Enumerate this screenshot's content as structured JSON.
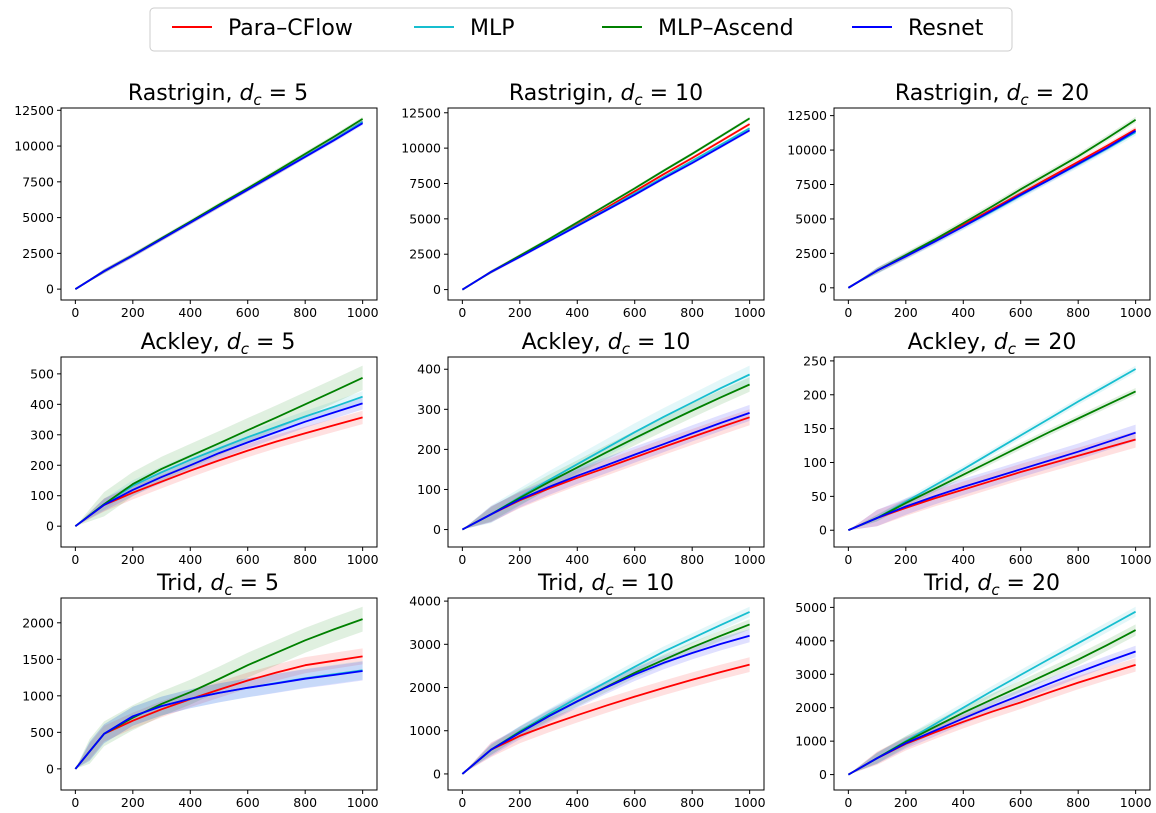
{
  "legend": {
    "placement": "top-center",
    "entries": [
      {
        "name": "Para–CFlow",
        "color": "#ff0000"
      },
      {
        "name": "MLP",
        "color": "#17becf"
      },
      {
        "name": "MLP–Ascend",
        "color": "#008000"
      },
      {
        "name": "Resnet",
        "color": "#0000ff"
      }
    ]
  },
  "chart_data": [
    {
      "type": "line",
      "function": "Rastrigin",
      "dc": "5",
      "xlim": [
        0,
        1000
      ],
      "ylim": [
        0,
        12500
      ],
      "xticks": [
        0,
        200,
        400,
        600,
        800,
        1000
      ],
      "yticks": [
        0,
        2500,
        5000,
        7500,
        10000,
        12500
      ],
      "x": [
        0,
        100,
        200,
        300,
        400,
        500,
        600,
        700,
        800,
        900,
        1000
      ],
      "series": [
        {
          "name": "Para–CFlow",
          "color": "#ff0000",
          "values": [
            0,
            1250,
            2350,
            3500,
            4650,
            5800,
            6950,
            8100,
            9300,
            10450,
            11700
          ],
          "band": 150
        },
        {
          "name": "MLP",
          "color": "#17becf",
          "values": [
            0,
            1250,
            2350,
            3500,
            4650,
            5800,
            6950,
            8100,
            9300,
            10450,
            11700
          ],
          "band": 150
        },
        {
          "name": "MLP–Ascend",
          "color": "#008000",
          "values": [
            0,
            1250,
            2380,
            3550,
            4720,
            5900,
            7050,
            8250,
            9450,
            10650,
            11900
          ],
          "band": 150
        },
        {
          "name": "Resnet",
          "color": "#0000ff",
          "values": [
            0,
            1250,
            2350,
            3500,
            4650,
            5800,
            6950,
            8100,
            9250,
            10400,
            11600
          ],
          "band": 150
        }
      ]
    },
    {
      "type": "line",
      "function": "Rastrigin",
      "dc": "10",
      "xlim": [
        0,
        1000
      ],
      "ylim": [
        0,
        12500
      ],
      "xticks": [
        0,
        200,
        400,
        600,
        800,
        1000
      ],
      "yticks": [
        0,
        2500,
        5000,
        7500,
        10000,
        12500
      ],
      "x": [
        0,
        100,
        200,
        300,
        400,
        500,
        600,
        700,
        800,
        900,
        1000
      ],
      "series": [
        {
          "name": "Para–CFlow",
          "color": "#ff0000",
          "values": [
            0,
            1250,
            2350,
            3450,
            4600,
            5750,
            6950,
            8150,
            9300,
            10500,
            11700
          ],
          "band": 120
        },
        {
          "name": "MLP",
          "color": "#17becf",
          "values": [
            0,
            1250,
            2350,
            3450,
            4550,
            5650,
            6800,
            7950,
            9100,
            10250,
            11400
          ],
          "band": 120
        },
        {
          "name": "MLP–Ascend",
          "color": "#008000",
          "values": [
            0,
            1250,
            2400,
            3550,
            4750,
            5950,
            7150,
            8400,
            9600,
            10850,
            12100
          ],
          "band": 120
        },
        {
          "name": "Resnet",
          "color": "#0000ff",
          "values": [
            0,
            1250,
            2300,
            3400,
            4500,
            5600,
            6700,
            7850,
            8950,
            10100,
            11250
          ],
          "band": 120
        }
      ]
    },
    {
      "type": "line",
      "function": "Rastrigin",
      "dc": "20",
      "xlim": [
        0,
        1000
      ],
      "ylim": [
        0,
        12500
      ],
      "xticks": [
        0,
        200,
        400,
        600,
        800,
        1000
      ],
      "yticks": [
        0,
        2500,
        5000,
        7500,
        10000,
        12500
      ],
      "x": [
        0,
        100,
        200,
        300,
        400,
        500,
        600,
        700,
        800,
        900,
        1000
      ],
      "series": [
        {
          "name": "Para–CFlow",
          "color": "#ff0000",
          "values": [
            0,
            1250,
            2300,
            3400,
            4550,
            5700,
            6850,
            8000,
            9150,
            10300,
            11500
          ],
          "band": 200
        },
        {
          "name": "MLP",
          "color": "#17becf",
          "values": [
            0,
            1250,
            2300,
            3350,
            4450,
            5550,
            6700,
            7850,
            8950,
            10100,
            11300
          ],
          "band": 250
        },
        {
          "name": "MLP–Ascend",
          "color": "#008000",
          "values": [
            0,
            1250,
            2380,
            3500,
            4700,
            5900,
            7150,
            8350,
            9550,
            10850,
            12200
          ],
          "band": 220
        },
        {
          "name": "Resnet",
          "color": "#0000ff",
          "values": [
            0,
            1250,
            2280,
            3350,
            4450,
            5600,
            6750,
            7850,
            9000,
            10150,
            11400
          ],
          "band": 200
        }
      ]
    },
    {
      "type": "line",
      "function": "Ackley",
      "dc": "5",
      "xlim": [
        0,
        1000
      ],
      "ylim": [
        0,
        500
      ],
      "xticks": [
        0,
        200,
        400,
        600,
        800,
        1000
      ],
      "yticks": [
        0,
        100,
        200,
        300,
        400,
        500
      ],
      "x": [
        0,
        100,
        200,
        300,
        400,
        500,
        600,
        700,
        800,
        900,
        1000
      ],
      "series": [
        {
          "name": "Para–CFlow",
          "color": "#ff0000",
          "values": [
            0,
            70,
            110,
            146,
            182,
            216,
            248,
            278,
            305,
            331,
            357
          ],
          "band": 22
        },
        {
          "name": "MLP",
          "color": "#17becf",
          "values": [
            0,
            72,
            133,
            177,
            218,
            255,
            292,
            326,
            360,
            392,
            425
          ],
          "band": 18
        },
        {
          "name": "MLP–Ascend",
          "color": "#008000",
          "values": [
            0,
            72,
            138,
            188,
            230,
            272,
            315,
            357,
            400,
            443,
            487
          ],
          "band": 40
        },
        {
          "name": "Resnet",
          "color": "#0000ff",
          "values": [
            0,
            70,
            119,
            161,
            200,
            240,
            275,
            309,
            343,
            373,
            403
          ],
          "band": 20
        }
      ]
    },
    {
      "type": "line",
      "function": "Ackley",
      "dc": "10",
      "xlim": [
        0,
        1000
      ],
      "ylim": [
        0,
        400
      ],
      "xticks": [
        0,
        200,
        400,
        600,
        800,
        1000
      ],
      "yticks": [
        0,
        100,
        200,
        300,
        400
      ],
      "x": [
        0,
        100,
        200,
        300,
        400,
        500,
        600,
        700,
        800,
        900,
        1000
      ],
      "series": [
        {
          "name": "Para–CFlow",
          "color": "#ff0000",
          "values": [
            0,
            38,
            73,
            102,
            129,
            154,
            180,
            206,
            231,
            256,
            280
          ],
          "band": 20
        },
        {
          "name": "MLP",
          "color": "#17becf",
          "values": [
            0,
            38,
            81,
            123,
            163,
            203,
            243,
            281,
            317,
            353,
            387
          ],
          "band": 22
        },
        {
          "name": "MLP–Ascend",
          "color": "#008000",
          "values": [
            0,
            38,
            79,
            118,
            155,
            192,
            228,
            263,
            297,
            330,
            362
          ],
          "band": 18
        },
        {
          "name": "Resnet",
          "color": "#0000ff",
          "values": [
            0,
            38,
            75,
            106,
            134,
            160,
            187,
            213,
            240,
            266,
            291
          ],
          "band": 20
        }
      ]
    },
    {
      "type": "line",
      "function": "Ackley",
      "dc": "20",
      "xlim": [
        0,
        1000
      ],
      "ylim": [
        0,
        250
      ],
      "xticks": [
        0,
        200,
        400,
        600,
        800,
        1000
      ],
      "yticks": [
        0,
        50,
        100,
        150,
        200,
        250
      ],
      "x": [
        0,
        100,
        200,
        300,
        400,
        500,
        600,
        700,
        800,
        900,
        1000
      ],
      "series": [
        {
          "name": "Para–CFlow",
          "color": "#ff0000",
          "values": [
            0,
            18,
            33,
            47,
            60,
            73,
            86,
            98,
            110,
            122,
            134
          ],
          "band": 12
        },
        {
          "name": "MLP",
          "color": "#17becf",
          "values": [
            0,
            18,
            42,
            66,
            90,
            115,
            140,
            165,
            190,
            214,
            238
          ],
          "band": 5
        },
        {
          "name": "MLP–Ascend",
          "color": "#008000",
          "values": [
            0,
            18,
            40,
            61,
            82,
            103,
            124,
            145,
            165,
            185,
            205
          ],
          "band": 5
        },
        {
          "name": "Resnet",
          "color": "#0000ff",
          "values": [
            0,
            18,
            35,
            50,
            64,
            77,
            90,
            103,
            116,
            130,
            144
          ],
          "band": 12
        }
      ]
    },
    {
      "type": "line",
      "function": "Trid",
      "dc": "5",
      "xlim": [
        0,
        1000
      ],
      "ylim": [
        0,
        2000
      ],
      "xticks": [
        0,
        200,
        400,
        600,
        800,
        1000
      ],
      "yticks": [
        0,
        500,
        1000,
        1500,
        2000
      ],
      "x": [
        0,
        50,
        100,
        200,
        300,
        400,
        500,
        600,
        700,
        800,
        900,
        1000
      ],
      "series": [
        {
          "name": "Para–CFlow",
          "color": "#ff0000",
          "values": [
            0,
            240,
            480,
            660,
            815,
            955,
            1085,
            1210,
            1320,
            1420,
            1480,
            1540
          ],
          "band": 110
        },
        {
          "name": "MLP",
          "color": "#17becf",
          "values": [
            0,
            240,
            480,
            720,
            860,
            960,
            1040,
            1110,
            1175,
            1240,
            1295,
            1350
          ],
          "band": 130
        },
        {
          "name": "MLP–Ascend",
          "color": "#008000",
          "values": [
            0,
            240,
            480,
            700,
            890,
            1050,
            1230,
            1420,
            1590,
            1760,
            1910,
            2050
          ],
          "band": 170
        },
        {
          "name": "Resnet",
          "color": "#0000ff",
          "values": [
            0,
            240,
            480,
            720,
            860,
            960,
            1040,
            1110,
            1170,
            1235,
            1285,
            1340
          ],
          "band": 130
        }
      ]
    },
    {
      "type": "line",
      "function": "Trid",
      "dc": "10",
      "xlim": [
        0,
        1000
      ],
      "ylim": [
        0,
        4000
      ],
      "xticks": [
        0,
        200,
        400,
        600,
        800,
        1000
      ],
      "yticks": [
        0,
        1000,
        2000,
        3000,
        4000
      ],
      "x": [
        0,
        100,
        200,
        300,
        400,
        500,
        600,
        700,
        800,
        900,
        1000
      ],
      "series": [
        {
          "name": "Para–CFlow",
          "color": "#ff0000",
          "values": [
            0,
            560,
            880,
            1130,
            1360,
            1580,
            1790,
            1990,
            2180,
            2360,
            2530
          ],
          "band": 170
        },
        {
          "name": "MLP",
          "color": "#17becf",
          "values": [
            0,
            560,
            990,
            1380,
            1760,
            2120,
            2480,
            2830,
            3140,
            3450,
            3750
          ],
          "band": 120
        },
        {
          "name": "MLP–Ascend",
          "color": "#008000",
          "values": [
            0,
            560,
            970,
            1340,
            1680,
            2010,
            2340,
            2640,
            2930,
            3200,
            3460
          ],
          "band": 120
        },
        {
          "name": "Resnet",
          "color": "#0000ff",
          "values": [
            0,
            560,
            950,
            1330,
            1680,
            2000,
            2300,
            2570,
            2800,
            3010,
            3200
          ],
          "band": 150
        }
      ]
    },
    {
      "type": "line",
      "function": "Trid",
      "dc": "20",
      "xlim": [
        0,
        1000
      ],
      "ylim": [
        0,
        5000
      ],
      "xticks": [
        0,
        200,
        400,
        600,
        800,
        1000
      ],
      "yticks": [
        0,
        1000,
        2000,
        3000,
        4000,
        5000
      ],
      "x": [
        0,
        100,
        200,
        300,
        400,
        500,
        600,
        700,
        800,
        900,
        1000
      ],
      "series": [
        {
          "name": "Para–CFlow",
          "color": "#ff0000",
          "values": [
            0,
            490,
            920,
            1260,
            1580,
            1880,
            2160,
            2460,
            2750,
            3020,
            3280
          ],
          "band": 200
        },
        {
          "name": "MLP",
          "color": "#17becf",
          "values": [
            0,
            490,
            1000,
            1500,
            2000,
            2500,
            2980,
            3460,
            3930,
            4400,
            4870
          ],
          "band": 150
        },
        {
          "name": "MLP–Ascend",
          "color": "#008000",
          "values": [
            0,
            490,
            980,
            1420,
            1850,
            2250,
            2640,
            3040,
            3440,
            3870,
            4320
          ],
          "band": 170
        },
        {
          "name": "Resnet",
          "color": "#0000ff",
          "values": [
            0,
            490,
            940,
            1310,
            1680,
            2040,
            2380,
            2720,
            3060,
            3380,
            3680
          ],
          "band": 170
        }
      ]
    }
  ]
}
